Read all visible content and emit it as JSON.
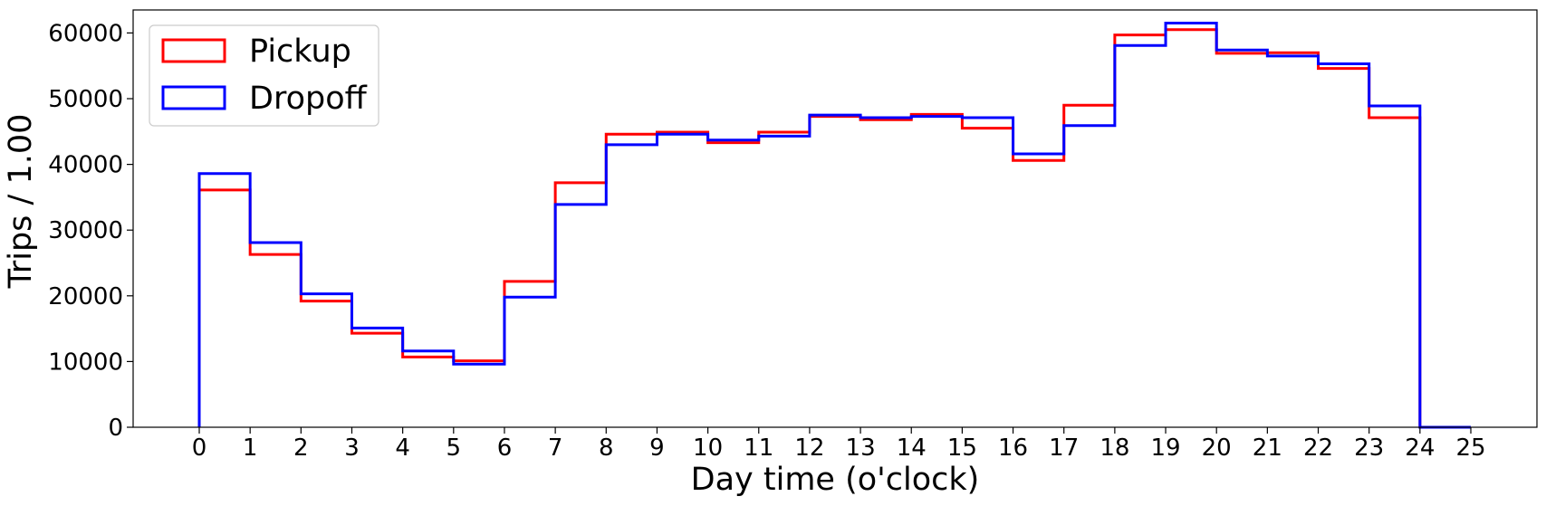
{
  "chart_data": {
    "type": "step-histogram",
    "xlabel": "Day time (o'clock)",
    "ylabel": "Trips / 1.00",
    "xlim": [
      -1.3,
      26.3
    ],
    "ylim": [
      0,
      63500
    ],
    "x_ticks": [
      "0",
      "1",
      "2",
      "3",
      "4",
      "5",
      "6",
      "7",
      "8",
      "9",
      "10",
      "11",
      "12",
      "13",
      "14",
      "15",
      "16",
      "17",
      "18",
      "19",
      "20",
      "21",
      "22",
      "23",
      "24",
      "25"
    ],
    "y_ticks": [
      "0",
      "10000",
      "20000",
      "30000",
      "40000",
      "50000",
      "60000"
    ],
    "bin_edges": [
      0,
      1,
      2,
      3,
      4,
      5,
      6,
      7,
      8,
      9,
      10,
      11,
      12,
      13,
      14,
      15,
      16,
      17,
      18,
      19,
      20,
      21,
      22,
      23,
      24,
      25
    ],
    "legend_position": "top-left",
    "grid": false,
    "series": [
      {
        "name": "Pickup",
        "color": "#ff0000",
        "values": [
          36100,
          26300,
          19200,
          14300,
          10700,
          10100,
          22200,
          37200,
          44600,
          44900,
          43300,
          44900,
          47300,
          46800,
          47600,
          45500,
          40600,
          49000,
          59700,
          60500,
          56900,
          57000,
          54600,
          47100,
          0
        ]
      },
      {
        "name": "Dropoff",
        "color": "#0000ff",
        "values": [
          38600,
          28100,
          20300,
          15100,
          11600,
          9600,
          19800,
          33900,
          43000,
          44600,
          43700,
          44300,
          47500,
          47100,
          47300,
          47100,
          41600,
          45900,
          58100,
          61500,
          57400,
          56500,
          55300,
          48900,
          0
        ]
      }
    ]
  }
}
